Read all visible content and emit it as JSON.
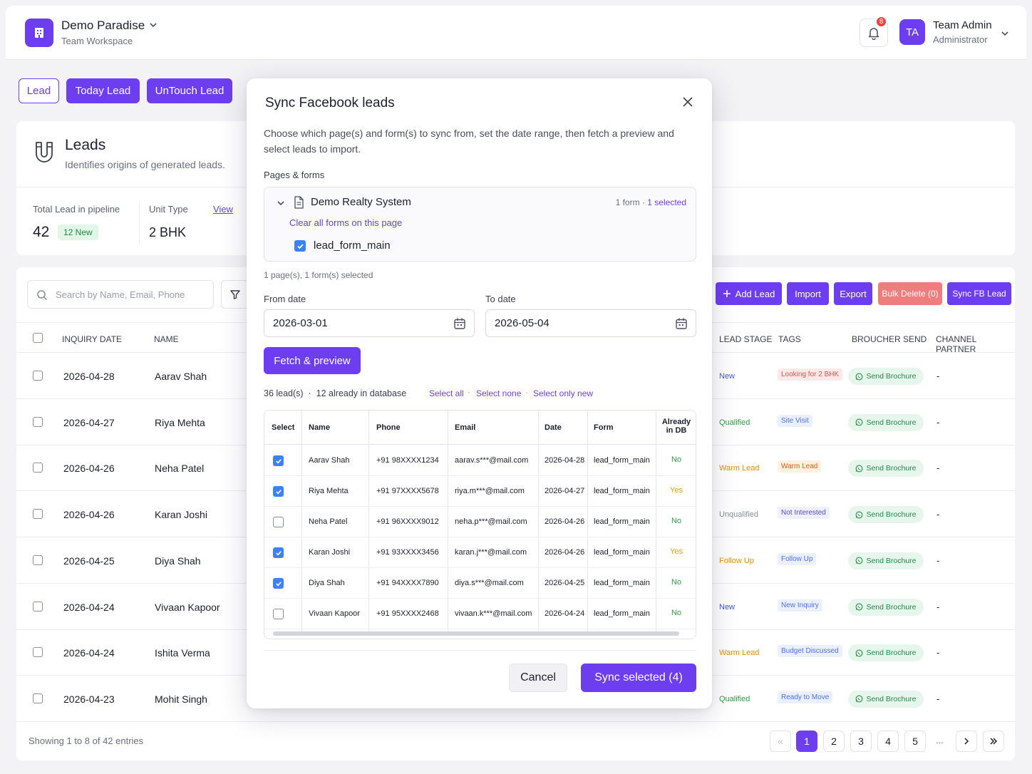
{
  "header": {
    "workspace_name": "Demo Paradise",
    "workspace_sub": "Team Workspace",
    "notifications_count": "8",
    "user_initials": "TA",
    "user_name": "Team Admin",
    "user_role": "Administrator"
  },
  "tabs": {
    "lead": "Lead",
    "today": "Today Lead",
    "untouch": "UnTouch Lead"
  },
  "leads_card": {
    "title": "Leads",
    "subtitle": "Identifies origins of generated leads.",
    "total_label": "Total Lead in pipeline",
    "total_value": "42",
    "new_badge": "12 New",
    "unit_label": "Unit Type",
    "unit_view": "View",
    "unit_value": "2 BHK"
  },
  "toolbar": {
    "search_placeholder": "Search by Name, Email, Phone",
    "add_lead": "Add Lead",
    "import": "Import",
    "export": "Export",
    "bulk_delete": "Bulk Delete (0)",
    "sync_fb": "Sync FB Lead"
  },
  "table": {
    "headers": {
      "date": "INQUIRY DATE",
      "name": "NAME",
      "stage": "LEAD STAGE",
      "tags": "TAGS",
      "broucher": "BROUCHER SEND",
      "partner": "CHANNEL PARTNER"
    },
    "brochure_label": "Send Brochure",
    "rows": [
      {
        "date": "2026-04-28",
        "name": "Aarav Shah",
        "stage": "New",
        "tag": "Looking for 2 BHK",
        "partner": "-"
      },
      {
        "date": "2026-04-27",
        "name": "Riya Mehta",
        "stage": "Qualified",
        "tag": "Site Visit",
        "partner": "-"
      },
      {
        "date": "2026-04-26",
        "name": "Neha Patel",
        "stage": "Warm Lead",
        "tag": "Warm Lead",
        "partner": "-"
      },
      {
        "date": "2026-04-26",
        "name": "Karan Joshi",
        "stage": "Unqualified",
        "tag": "Not Interested",
        "partner": "-"
      },
      {
        "date": "2026-04-25",
        "name": "Diya Shah",
        "stage": "Follow Up",
        "tag": "Follow Up",
        "partner": "-"
      },
      {
        "date": "2026-04-24",
        "name": "Vivaan Kapoor",
        "stage": "New",
        "tag": "New Inquiry",
        "partner": "-"
      },
      {
        "date": "2026-04-24",
        "name": "Ishita Verma",
        "stage": "Warm Lead",
        "tag": "Budget Discussed",
        "partner": "-"
      },
      {
        "date": "2026-04-23",
        "name": "Mohit Singh",
        "stage": "Qualified",
        "tag": "Ready to Move",
        "partner": "-"
      }
    ],
    "showing": "Showing 1 to 8 of 42 entries",
    "pages": [
      "1",
      "2",
      "3",
      "4",
      "5"
    ],
    "ellipsis": "..."
  },
  "modal": {
    "title": "Sync Facebook leads",
    "description": "Choose which page(s) and form(s) to sync from, set the date range, then fetch a preview and select leads to import.",
    "pages_forms_label": "Pages & forms",
    "page_name": "Demo Realty System",
    "page_form_count": "1 form",
    "page_dot": "·",
    "page_selected": "1 selected",
    "clear_link": "Clear all forms on this page",
    "form_name": "lead_form_main",
    "summary": "1 page(s), 1 form(s) selected",
    "from_label": "From date",
    "from_value": "2026-03-01",
    "to_label": "To date",
    "to_value": "2026-05-04",
    "fetch_button": "Fetch & preview",
    "leads_count": "36 lead(s)",
    "stats_dot": "·",
    "already_count": "12 already in database",
    "select_all": "Select all",
    "select_none": "Select none",
    "select_new": "Select only new",
    "preview_headers": {
      "select": "Select",
      "name": "Name",
      "phone": "Phone",
      "email": "Email",
      "date": "Date",
      "form": "Form",
      "db1": "Already",
      "db2": "in DB"
    },
    "preview_rows": [
      {
        "checked": true,
        "name": "Aarav Shah",
        "phone": "+91 98XXXX1234",
        "email": "aarav.s***@mail.com",
        "date": "2026-04-28",
        "form": "lead_form_main",
        "in_db": "No"
      },
      {
        "checked": true,
        "name": "Riya Mehta",
        "phone": "+91 97XXXX5678",
        "email": "riya.m***@mail.com",
        "date": "2026-04-27",
        "form": "lead_form_main",
        "in_db": "Yes"
      },
      {
        "checked": false,
        "name": "Neha Patel",
        "phone": "+91 96XXXX9012",
        "email": "neha.p***@mail.com",
        "date": "2026-04-26",
        "form": "lead_form_main",
        "in_db": "No"
      },
      {
        "checked": true,
        "name": "Karan Joshi",
        "phone": "+91 93XXXX3456",
        "email": "karan.j***@mail.com",
        "date": "2026-04-26",
        "form": "lead_form_main",
        "in_db": "Yes"
      },
      {
        "checked": true,
        "name": "Diya Shah",
        "phone": "+91 94XXXX7890",
        "email": "diya.s***@mail.com",
        "date": "2026-04-25",
        "form": "lead_form_main",
        "in_db": "No"
      },
      {
        "checked": false,
        "name": "Vivaan Kapoor",
        "phone": "+91 95XXXX2468",
        "email": "vivaan.k***@mail.com",
        "date": "2026-04-24",
        "form": "lead_form_main",
        "in_db": "No"
      }
    ],
    "cancel": "Cancel",
    "sync_selected": "Sync selected (4)"
  },
  "colors": {
    "accent": "#6d3df0",
    "danger_soft": "#ef7d7d",
    "stage_new": "#3b5bdb",
    "stage_qualified": "#2f9e44",
    "stage_warm": "#f08c00",
    "stage_unqualified": "#868e96",
    "stage_follow": "#f08c00",
    "db_yes": "#e8a200",
    "db_no": "#2f9e44"
  }
}
